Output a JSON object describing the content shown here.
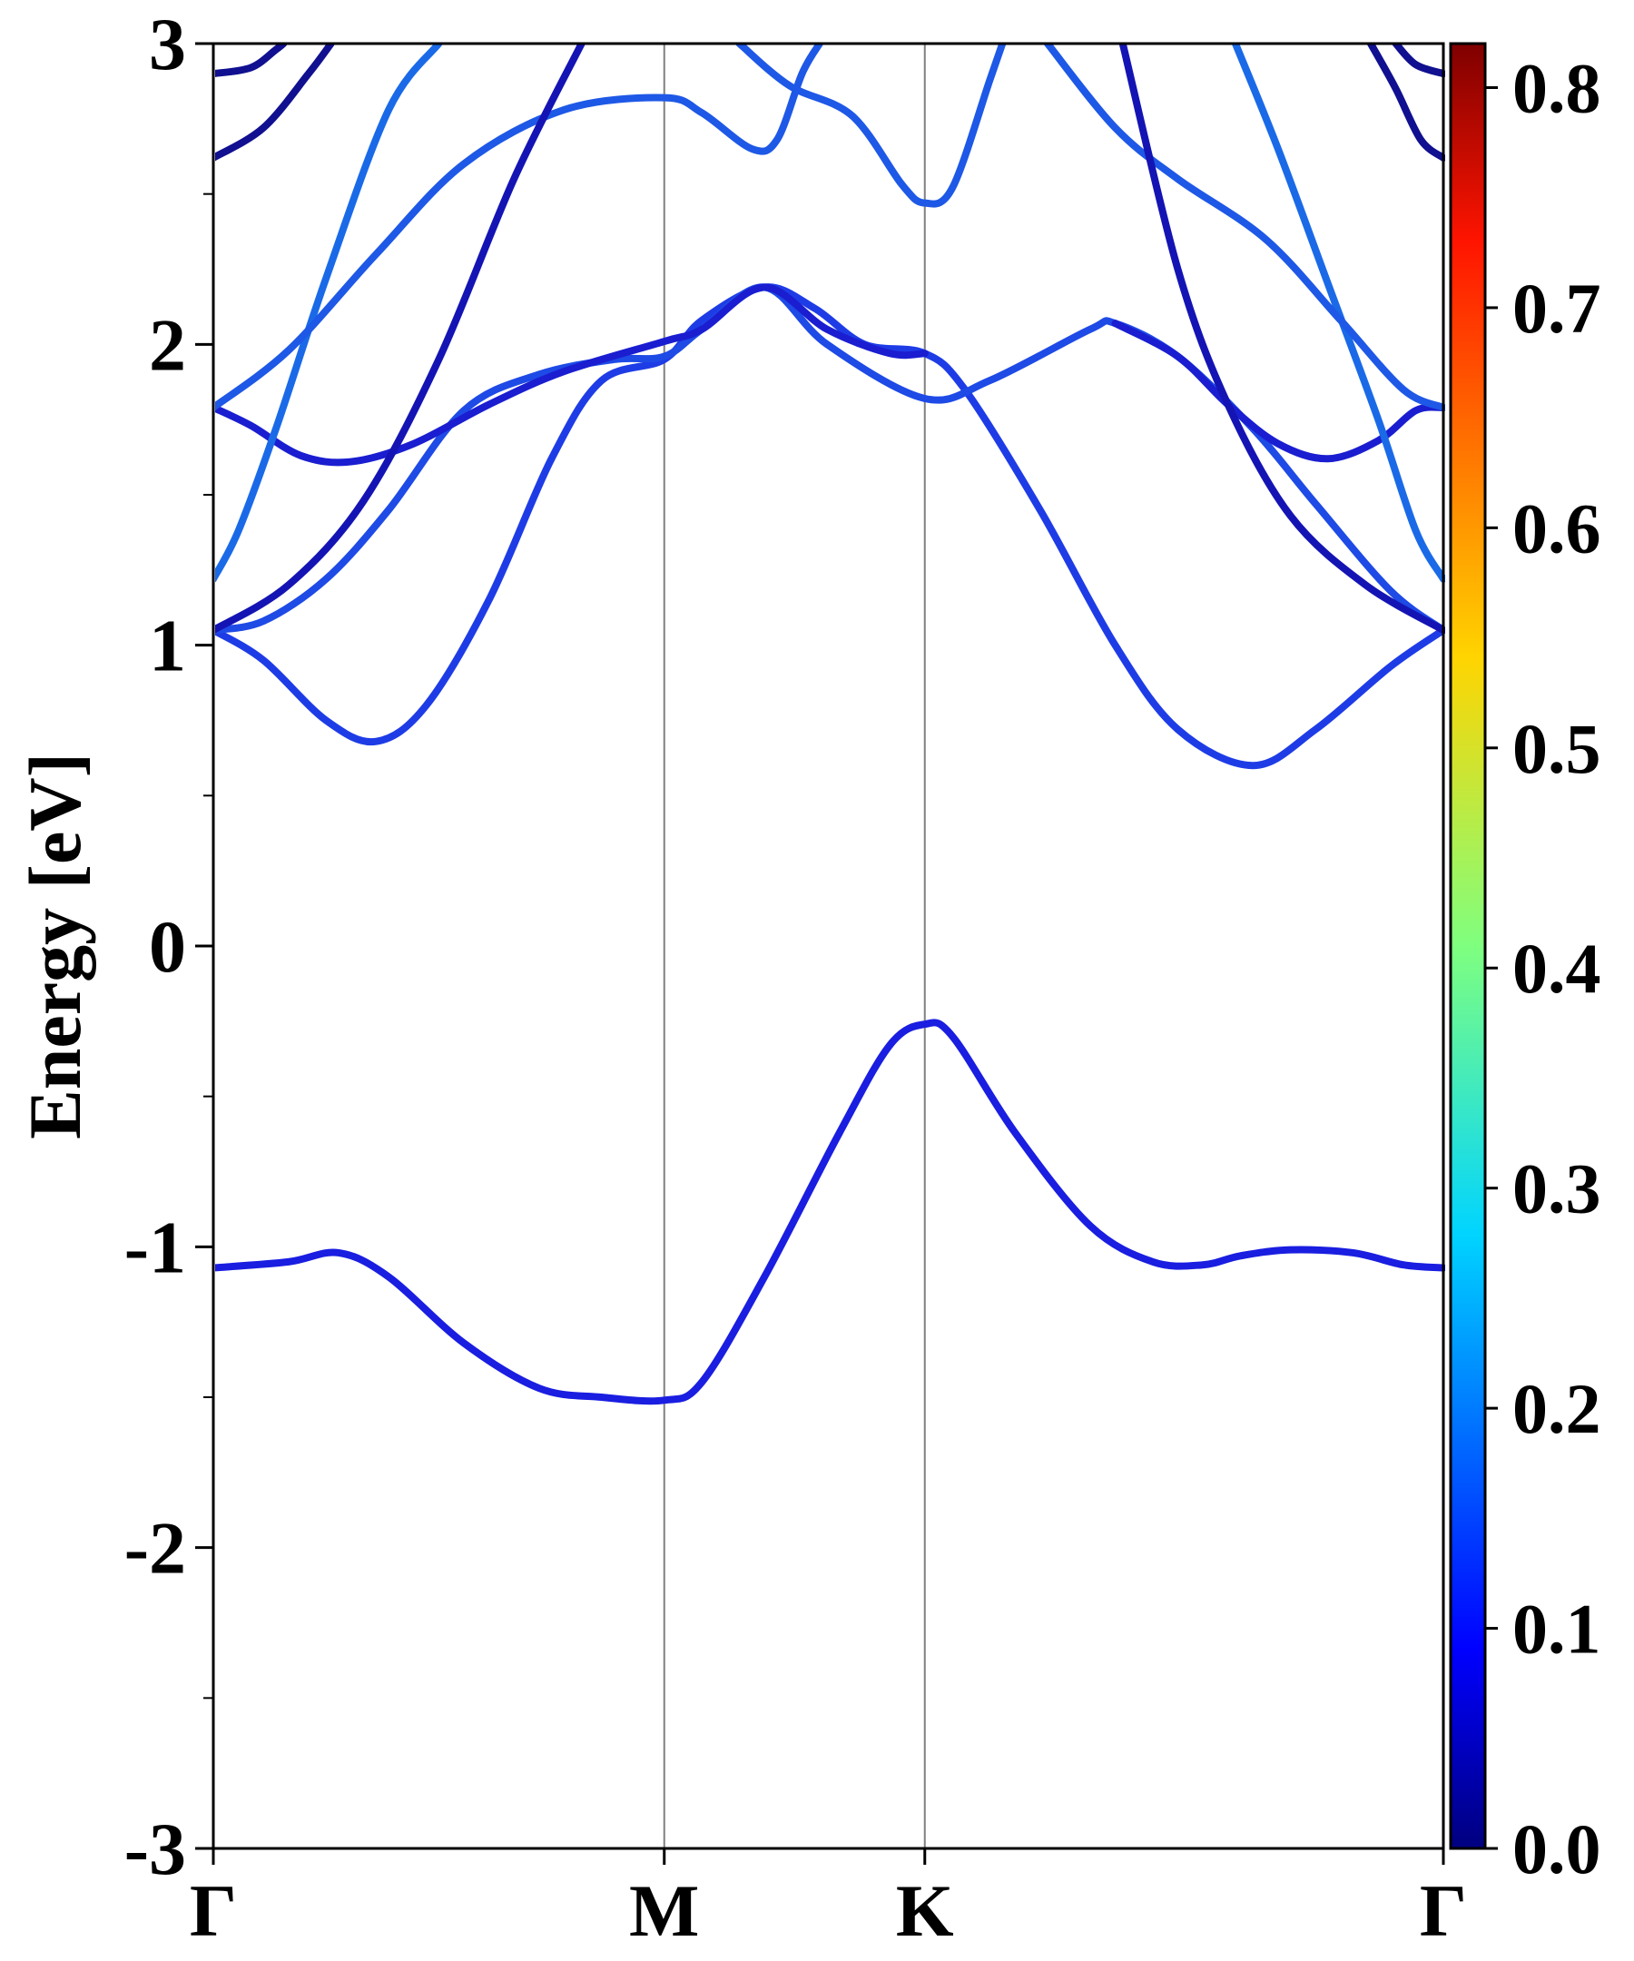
{
  "chart_data": {
    "type": "line",
    "title": "",
    "xlabel": "",
    "ylabel": "Energy [eV]",
    "ylim": [
      -3,
      3
    ],
    "xlim": [
      0,
      4.91
    ],
    "grid": false,
    "legend": "none",
    "x_ticks": [
      {
        "label": "Γ",
        "x": 0
      },
      {
        "label": "M",
        "x": 1.8
      },
      {
        "label": "K",
        "x": 2.84
      },
      {
        "label": "Γ",
        "x": 4.91
      }
    ],
    "y_ticks": [
      "-3",
      "-2",
      "-1",
      "0",
      "1",
      "2",
      "3"
    ],
    "y_tick_values": [
      -3,
      -2,
      -1,
      0,
      1,
      2,
      3
    ],
    "colorbar": {
      "colormap": "jet",
      "range": [
        0.0,
        0.82
      ],
      "tick_values": [
        0.0,
        0.1,
        0.2,
        0.3,
        0.4,
        0.5,
        0.6,
        0.7,
        0.8
      ],
      "tick_labels": [
        "0.0",
        "0.1",
        "0.2",
        "0.3",
        "0.4",
        "0.5",
        "0.6",
        "0.7",
        "0.8"
      ]
    },
    "series": [
      {
        "color": "#1a1ee0",
        "weight": 0.1,
        "points": [
          [
            0,
            -1.07
          ],
          [
            0.3,
            -1.05
          ],
          [
            0.5,
            -1.02
          ],
          [
            0.7,
            -1.1
          ],
          [
            1.0,
            -1.32
          ],
          [
            1.3,
            -1.47
          ],
          [
            1.55,
            -1.5
          ],
          [
            1.8,
            -1.51
          ],
          [
            1.95,
            -1.45
          ],
          [
            2.2,
            -1.1
          ],
          [
            2.5,
            -0.62
          ],
          [
            2.7,
            -0.33
          ],
          [
            2.84,
            -0.26
          ],
          [
            2.95,
            -0.3
          ],
          [
            3.2,
            -0.62
          ],
          [
            3.5,
            -0.93
          ],
          [
            3.75,
            -1.05
          ],
          [
            3.95,
            -1.06
          ],
          [
            4.1,
            -1.03
          ],
          [
            4.3,
            -1.01
          ],
          [
            4.55,
            -1.02
          ],
          [
            4.75,
            -1.06
          ],
          [
            4.91,
            -1.07
          ]
        ]
      },
      {
        "color": "#1e3ce6",
        "weight": 0.14,
        "points": [
          [
            0,
            1.05
          ],
          [
            0.2,
            0.95
          ],
          [
            0.45,
            0.75
          ],
          [
            0.65,
            0.68
          ],
          [
            0.85,
            0.8
          ],
          [
            1.1,
            1.15
          ],
          [
            1.35,
            1.62
          ],
          [
            1.55,
            1.88
          ],
          [
            1.8,
            1.95
          ],
          [
            1.95,
            2.08
          ],
          [
            2.2,
            2.19
          ],
          [
            2.4,
            2.12
          ],
          [
            2.6,
            2.0
          ],
          [
            2.84,
            1.97
          ],
          [
            3.0,
            1.85
          ],
          [
            3.3,
            1.45
          ],
          [
            3.6,
            1.0
          ],
          [
            3.85,
            0.72
          ],
          [
            4.15,
            0.6
          ],
          [
            4.4,
            0.72
          ],
          [
            4.7,
            0.93
          ],
          [
            4.91,
            1.05
          ]
        ]
      },
      {
        "color": "#1e4ae6",
        "weight": 0.16,
        "points": [
          [
            0,
            1.05
          ],
          [
            0.2,
            1.08
          ],
          [
            0.45,
            1.22
          ],
          [
            0.7,
            1.45
          ],
          [
            1.0,
            1.78
          ],
          [
            1.3,
            1.9
          ],
          [
            1.6,
            1.95
          ],
          [
            1.8,
            1.96
          ],
          [
            1.95,
            2.05
          ],
          [
            2.2,
            2.19
          ],
          [
            2.45,
            2.0
          ],
          [
            2.84,
            1.82
          ],
          [
            3.1,
            1.88
          ],
          [
            3.5,
            2.05
          ],
          [
            3.6,
            2.07
          ],
          [
            3.85,
            1.96
          ],
          [
            4.15,
            1.72
          ],
          [
            4.4,
            1.47
          ],
          [
            4.7,
            1.18
          ],
          [
            4.91,
            1.05
          ]
        ]
      },
      {
        "color": "#1a1ed0",
        "weight": 0.08,
        "points": [
          [
            0,
            1.79
          ],
          [
            0.15,
            1.73
          ],
          [
            0.35,
            1.63
          ],
          [
            0.55,
            1.61
          ],
          [
            0.8,
            1.67
          ],
          [
            1.1,
            1.8
          ],
          [
            1.4,
            1.91
          ],
          [
            1.8,
            2.01
          ],
          [
            1.95,
            2.05
          ],
          [
            2.2,
            2.19
          ],
          [
            2.45,
            2.05
          ],
          [
            2.7,
            1.97
          ],
          [
            2.84,
            1.97
          ]
        ]
      },
      {
        "color": "#1a1ed0",
        "weight": 0.08,
        "points": [
          [
            3.6,
            2.07
          ],
          [
            3.85,
            1.96
          ],
          [
            4.05,
            1.8
          ],
          [
            4.25,
            1.67
          ],
          [
            4.45,
            1.62
          ],
          [
            4.65,
            1.68
          ],
          [
            4.8,
            1.78
          ],
          [
            4.91,
            1.79
          ]
        ]
      },
      {
        "color": "#1a6ae8",
        "weight": 0.24,
        "points": [
          [
            0,
            1.22
          ],
          [
            0.1,
            1.38
          ],
          [
            0.25,
            1.72
          ],
          [
            0.45,
            2.22
          ],
          [
            0.7,
            2.78
          ],
          [
            0.9,
            3.0
          ]
        ]
      },
      {
        "color": "#1a6ae8",
        "weight": 0.24,
        "points": [
          [
            4.08,
            3.0
          ],
          [
            4.25,
            2.65
          ],
          [
            4.45,
            2.2
          ],
          [
            4.65,
            1.75
          ],
          [
            4.8,
            1.38
          ],
          [
            4.91,
            1.22
          ]
        ]
      },
      {
        "color": "#1e58e6",
        "weight": 0.2,
        "points": [
          [
            0,
            1.79
          ],
          [
            0.3,
            1.98
          ],
          [
            0.65,
            2.3
          ],
          [
            1.0,
            2.6
          ],
          [
            1.4,
            2.78
          ],
          [
            1.8,
            2.82
          ],
          [
            1.95,
            2.77
          ],
          [
            2.15,
            2.65
          ],
          [
            2.25,
            2.68
          ],
          [
            2.35,
            2.9
          ],
          [
            2.42,
            3.0
          ]
        ]
      },
      {
        "color": "#1e58e6",
        "weight": 0.2,
        "points": [
          [
            2.1,
            3.0
          ],
          [
            2.3,
            2.86
          ],
          [
            2.55,
            2.76
          ],
          [
            2.75,
            2.53
          ],
          [
            2.84,
            2.47
          ],
          [
            2.95,
            2.52
          ],
          [
            3.1,
            2.88
          ],
          [
            3.15,
            3.0
          ]
        ]
      },
      {
        "color": "#1e58e6",
        "weight": 0.2,
        "points": [
          [
            3.33,
            3.0
          ],
          [
            3.6,
            2.72
          ],
          [
            3.85,
            2.55
          ],
          [
            4.2,
            2.35
          ],
          [
            4.5,
            2.08
          ],
          [
            4.75,
            1.85
          ],
          [
            4.91,
            1.79
          ]
        ]
      },
      {
        "color": "#1414b4",
        "weight": 0.04,
        "points": [
          [
            0,
            1.05
          ],
          [
            0.3,
            1.2
          ],
          [
            0.6,
            1.48
          ],
          [
            0.9,
            1.95
          ],
          [
            1.2,
            2.55
          ],
          [
            1.47,
            3.0
          ]
        ]
      },
      {
        "color": "#1414b4",
        "weight": 0.04,
        "points": [
          [
            3.63,
            3.0
          ],
          [
            3.85,
            2.25
          ],
          [
            4.05,
            1.8
          ],
          [
            4.3,
            1.43
          ],
          [
            4.6,
            1.2
          ],
          [
            4.91,
            1.05
          ]
        ]
      },
      {
        "color": "#101090",
        "weight": 0.02,
        "points": [
          [
            0,
            2.62
          ],
          [
            0.2,
            2.72
          ],
          [
            0.38,
            2.9
          ],
          [
            0.47,
            3.0
          ]
        ]
      },
      {
        "color": "#101090",
        "weight": 0.02,
        "points": [
          [
            4.62,
            3.0
          ],
          [
            4.72,
            2.85
          ],
          [
            4.82,
            2.68
          ],
          [
            4.91,
            2.62
          ]
        ]
      },
      {
        "color": "#101090",
        "weight": 0.02,
        "points": [
          [
            0,
            2.9
          ],
          [
            0.15,
            2.92
          ],
          [
            0.25,
            2.98
          ],
          [
            0.28,
            3.0
          ]
        ]
      },
      {
        "color": "#101090",
        "weight": 0.02,
        "points": [
          [
            4.72,
            3.0
          ],
          [
            4.8,
            2.93
          ],
          [
            4.91,
            2.9
          ]
        ]
      }
    ]
  }
}
